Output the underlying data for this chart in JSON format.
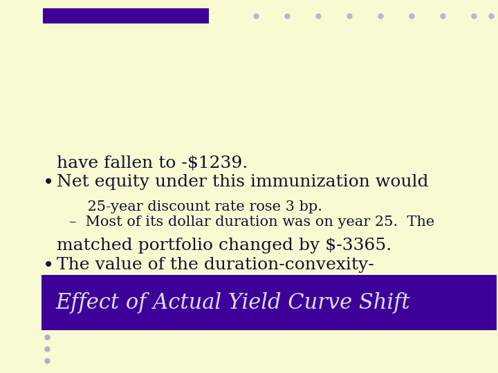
{
  "background_color": "#fafad2",
  "title": "Effect of Actual Yield Curve Shift",
  "title_bg_color": "#3d0099",
  "title_text_color": "#dcdcee",
  "title_fontsize": 22,
  "bullet1_line1": "The value of the duration-convexity-",
  "bullet1_line2": "matched portfolio changed by $-3365.",
  "sub_line1": "–  Most of its dollar duration was on year 25.  The",
  "sub_line2": "    25-year discount rate rose 3 bp.",
  "bullet2_line1": "Net equity under this immunization would",
  "bullet2_line2": "have fallen to -$1239.",
  "body_text_color": "#111133",
  "body_fontsize": 18,
  "sub_fontsize": 15,
  "dot_color": "#b8b8c8",
  "purple_bar_color": "#3d0099",
  "accent_dot_color": "#b0b0c0"
}
